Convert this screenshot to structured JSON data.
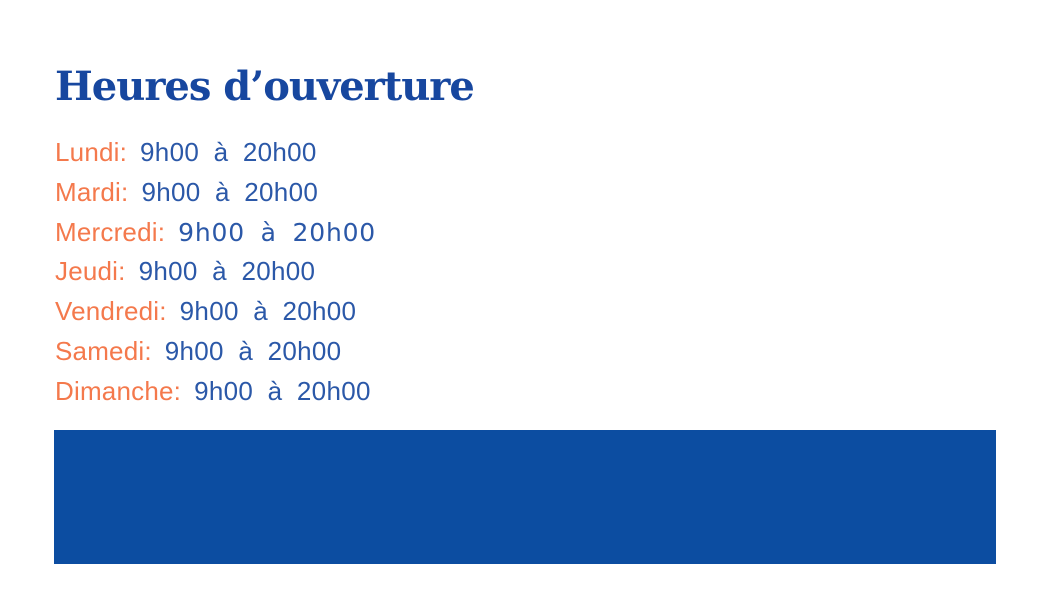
{
  "title": "Heures d’ouverture",
  "hours": {
    "items": [
      {
        "day": "Lundi:",
        "time": "9h00 à 20h00"
      },
      {
        "day": "Mardi:",
        "time": "9h00 à 20h00"
      },
      {
        "day": "Mercredi:",
        "time": "9h00 à 20h00"
      },
      {
        "day": "Jeudi:",
        "time": "9h00 à 20h00"
      },
      {
        "day": "Vendredi:",
        "time": "9h00 à 20h00"
      },
      {
        "day": "Samedi:",
        "time": "9h00 à 20h00"
      },
      {
        "day": "Dimanche:",
        "time": "9h00 à 20h00"
      }
    ]
  },
  "colors": {
    "title_blue": "#17479f",
    "time_blue": "#2b58a8",
    "day_orange": "#f4794c",
    "banner_blue": "#0c4da1",
    "background": "#ffffff"
  }
}
